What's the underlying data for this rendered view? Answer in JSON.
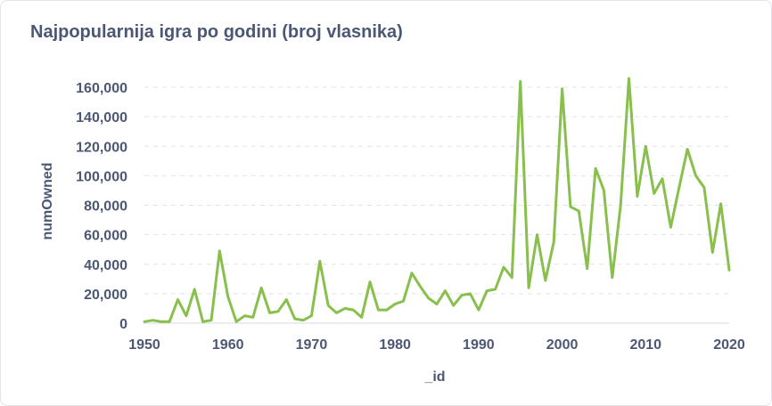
{
  "card": {
    "title": "Najpopularnija igra po godini (broj vlasnika)"
  },
  "chart_data": {
    "type": "line",
    "title": "Najpopularnija igra po godini (broj vlasnika)",
    "xlabel": "_id",
    "ylabel": "numOwned",
    "xlim": [
      1950,
      2020
    ],
    "ylim": [
      0,
      160000
    ],
    "x_ticks": [
      "1950",
      "1960",
      "1970",
      "1980",
      "1990",
      "2000",
      "2010",
      "2020"
    ],
    "y_ticks": [
      "0",
      "20,000",
      "40,000",
      "60,000",
      "80,000",
      "100,000",
      "120,000",
      "140,000",
      "160,000"
    ],
    "grid": "horizontal-dashed",
    "line_color": "#88bf4d",
    "series": [
      {
        "x": [
          1950,
          1951,
          1952,
          1953,
          1954,
          1955,
          1956,
          1957,
          1958,
          1959,
          1960,
          1961,
          1962,
          1963,
          1964,
          1965,
          1966,
          1967,
          1968,
          1969,
          1970,
          1971,
          1972,
          1973,
          1974,
          1975,
          1976,
          1977,
          1978,
          1979,
          1980,
          1981,
          1982,
          1983,
          1984,
          1985,
          1986,
          1987,
          1988,
          1989,
          1990,
          1991,
          1992,
          1993,
          1994,
          1995,
          1996,
          1997,
          1998,
          1999,
          2000,
          2001,
          2002,
          2003,
          2004,
          2005,
          2006,
          2007,
          2008,
          2009,
          2010,
          2011,
          2012,
          2013,
          2014,
          2015,
          2016,
          2017,
          2018,
          2019,
          2020
        ],
        "values": [
          1000,
          2000,
          1000,
          1000,
          16000,
          5000,
          23000,
          1000,
          2000,
          49000,
          18000,
          1000,
          5000,
          4000,
          24000,
          7000,
          8000,
          16000,
          3000,
          2000,
          5000,
          42000,
          12000,
          7000,
          10000,
          9000,
          4000,
          28000,
          9000,
          9000,
          13000,
          15000,
          34000,
          25000,
          17000,
          13000,
          22000,
          12000,
          19000,
          20000,
          9000,
          22000,
          23000,
          38000,
          31000,
          164000,
          24000,
          60000,
          29000,
          55000,
          159000,
          79000,
          76000,
          37000,
          105000,
          90000,
          31000,
          80000,
          166000,
          86000,
          120000,
          88000,
          98000,
          65000,
          92000,
          118000,
          100000,
          92000,
          48000,
          81000,
          36000
        ]
      }
    ]
  }
}
